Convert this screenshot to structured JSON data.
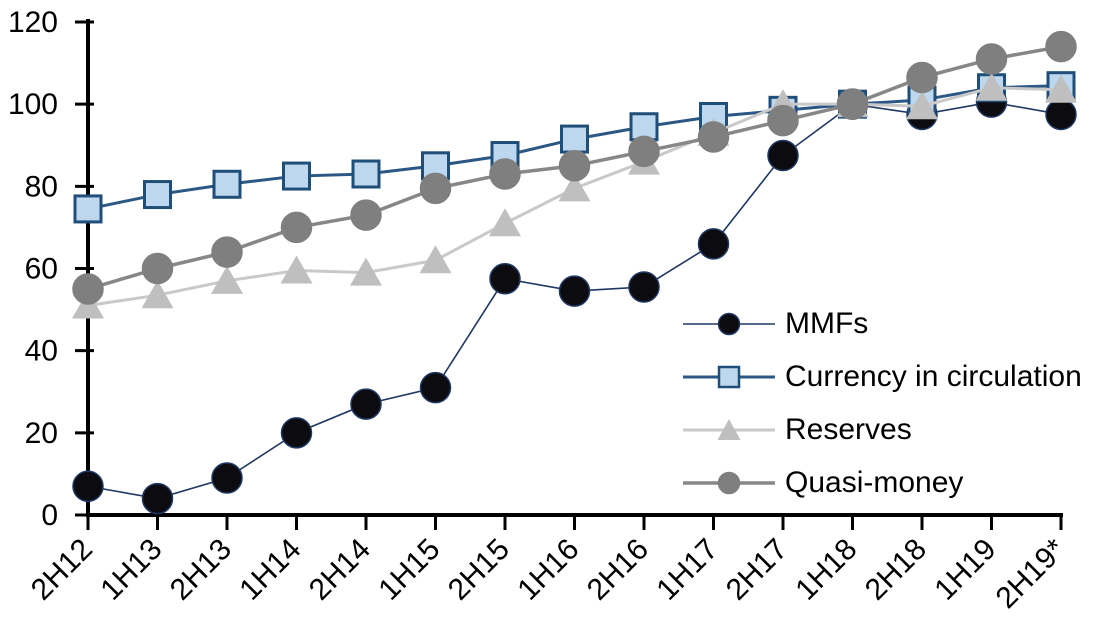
{
  "chart_data": {
    "type": "line",
    "title": "",
    "xlabel": "",
    "ylabel": "",
    "ylim": [
      0,
      120
    ],
    "yticks": [
      0,
      20,
      40,
      60,
      80,
      100,
      120
    ],
    "grid": false,
    "legend_position": "inside-right",
    "axis_color": "#000000",
    "categories": [
      "2H12",
      "1H13",
      "2H13",
      "1H14",
      "2H14",
      "1H15",
      "2H15",
      "1H16",
      "2H16",
      "1H17",
      "2H17",
      "1H18",
      "2H18",
      "1H19",
      "2H19*"
    ],
    "series": [
      {
        "name": "MMFs",
        "marker": "circle",
        "marker_fill": "#0b0b10",
        "marker_stroke": "#1f3864",
        "line_color": "#1f3864",
        "line_width": 1.6,
        "values": [
          7,
          4,
          9,
          20,
          27,
          31,
          57.5,
          54.5,
          55.5,
          66,
          87.5,
          100,
          97.5,
          100.5,
          97.5
        ]
      },
      {
        "name": "Currency in circulation",
        "marker": "square",
        "marker_fill": "#bdd7ee",
        "marker_stroke": "#1f4e79",
        "line_color": "#2a5783",
        "line_width": 3,
        "values": [
          74.5,
          78,
          80.5,
          82.5,
          83,
          85,
          87.5,
          91.5,
          94.5,
          97,
          98.5,
          100,
          101,
          104,
          104.5
        ]
      },
      {
        "name": "Reserves",
        "marker": "triangle",
        "marker_fill": "#bfbfbf",
        "marker_stroke": "#bfbfbf",
        "line_color": "#c9c9c9",
        "line_width": 3,
        "values": [
          51,
          53.5,
          57,
          59.5,
          59,
          62,
          71,
          79.5,
          86,
          93,
          100,
          100,
          99.5,
          104,
          103.5
        ]
      },
      {
        "name": "Quasi-money",
        "marker": "circle",
        "marker_fill": "#7f7f7f",
        "marker_stroke": "#7f7f7f",
        "line_color": "#878787",
        "line_width": 3.5,
        "values": [
          55,
          60,
          64,
          70,
          73,
          79.5,
          83,
          85,
          88.5,
          92,
          96,
          100,
          106.5,
          111,
          114
        ]
      }
    ]
  }
}
